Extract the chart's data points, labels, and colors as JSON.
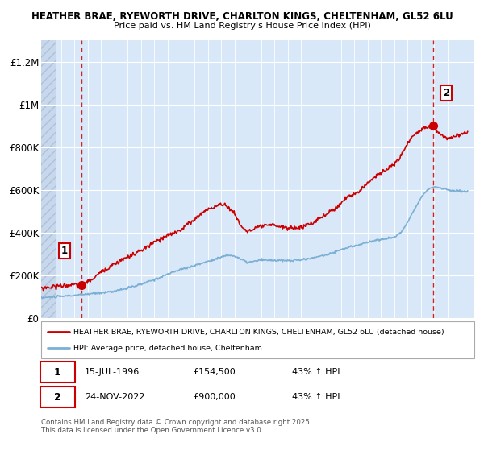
{
  "title1": "HEATHER BRAE, RYEWORTH DRIVE, CHARLTON KINGS, CHELTENHAM, GL52 6LU",
  "title2": "Price paid vs. HM Land Registry's House Price Index (HPI)",
  "ylim": [
    0,
    1300000
  ],
  "yticks": [
    0,
    200000,
    400000,
    600000,
    800000,
    1000000,
    1200000
  ],
  "ytick_labels": [
    "£0",
    "£200K",
    "£400K",
    "£600K",
    "£800K",
    "£1M",
    "£1.2M"
  ],
  "plot_bg": "#d8e8f8",
  "grid_color": "#ffffff",
  "red_line_color": "#cc0000",
  "blue_line_color": "#7bafd4",
  "sale1_x": 1996.54,
  "sale1_y": 154500,
  "sale2_x": 2022.9,
  "sale2_y": 900000,
  "legend_label_red": "HEATHER BRAE, RYEWORTH DRIVE, CHARLTON KINGS, CHELTENHAM, GL52 6LU (detached house)",
  "legend_label_blue": "HPI: Average price, detached house, Cheltenham",
  "note1_label": "1",
  "note1_date": "15-JUL-1996",
  "note1_price": "£154,500",
  "note1_hpi": "43% ↑ HPI",
  "note2_label": "2",
  "note2_date": "24-NOV-2022",
  "note2_price": "£900,000",
  "note2_hpi": "43% ↑ HPI",
  "footer": "Contains HM Land Registry data © Crown copyright and database right 2025.\nThis data is licensed under the Open Government Licence v3.0.",
  "xmin": 1993.5,
  "xmax": 2026.0,
  "hatch_end": 1994.58,
  "hpi_x": [
    1993.5,
    1994.0,
    1994.5,
    1995.0,
    1996.0,
    1997.0,
    1998.0,
    1999.0,
    2000.0,
    2001.0,
    2002.0,
    2003.0,
    2004.0,
    2005.0,
    2006.0,
    2007.0,
    2007.5,
    2008.0,
    2008.5,
    2009.0,
    2009.5,
    2010.0,
    2011.0,
    2012.0,
    2013.0,
    2014.0,
    2015.0,
    2016.0,
    2017.0,
    2018.0,
    2019.0,
    2020.0,
    2020.5,
    2021.0,
    2021.5,
    2022.0,
    2022.5,
    2023.0,
    2023.5,
    2024.0,
    2024.5,
    2025.0,
    2025.5
  ],
  "hpi_y": [
    95000,
    97000,
    99000,
    101000,
    106000,
    112000,
    118000,
    126000,
    140000,
    158000,
    180000,
    205000,
    228000,
    245000,
    265000,
    285000,
    295000,
    290000,
    275000,
    260000,
    265000,
    272000,
    270000,
    268000,
    272000,
    283000,
    298000,
    320000,
    338000,
    355000,
    368000,
    378000,
    400000,
    450000,
    510000,
    565000,
    600000,
    615000,
    610000,
    600000,
    595000,
    595000,
    592000
  ],
  "red_x": [
    1993.5,
    1994.0,
    1994.5,
    1995.0,
    1995.5,
    1996.0,
    1996.54,
    1997.0,
    1997.5,
    1998.0,
    1999.0,
    2000.0,
    2001.0,
    2002.0,
    2003.0,
    2004.0,
    2004.5,
    2005.0,
    2005.5,
    2006.0,
    2006.5,
    2007.0,
    2007.3,
    2007.5,
    2008.0,
    2008.5,
    2009.0,
    2009.5,
    2010.0,
    2011.0,
    2012.0,
    2013.0,
    2014.0,
    2015.0,
    2015.5,
    2016.0,
    2016.5,
    2017.0,
    2017.5,
    2018.0,
    2018.5,
    2019.0,
    2019.5,
    2020.0,
    2020.5,
    2021.0,
    2021.5,
    2022.0,
    2022.5,
    2022.9,
    2023.0,
    2023.5,
    2024.0,
    2024.5,
    2025.0,
    2025.5
  ],
  "red_y": [
    140000,
    143000,
    148000,
    152000,
    153000,
    154000,
    154500,
    168000,
    190000,
    215000,
    255000,
    285000,
    315000,
    355000,
    385000,
    415000,
    440000,
    460000,
    490000,
    510000,
    520000,
    530000,
    535000,
    520000,
    490000,
    430000,
    405000,
    415000,
    430000,
    435000,
    420000,
    425000,
    450000,
    490000,
    510000,
    540000,
    570000,
    580000,
    600000,
    635000,
    660000,
    680000,
    700000,
    720000,
    760000,
    820000,
    860000,
    880000,
    900000,
    900000,
    890000,
    855000,
    840000,
    850000,
    860000,
    870000
  ]
}
